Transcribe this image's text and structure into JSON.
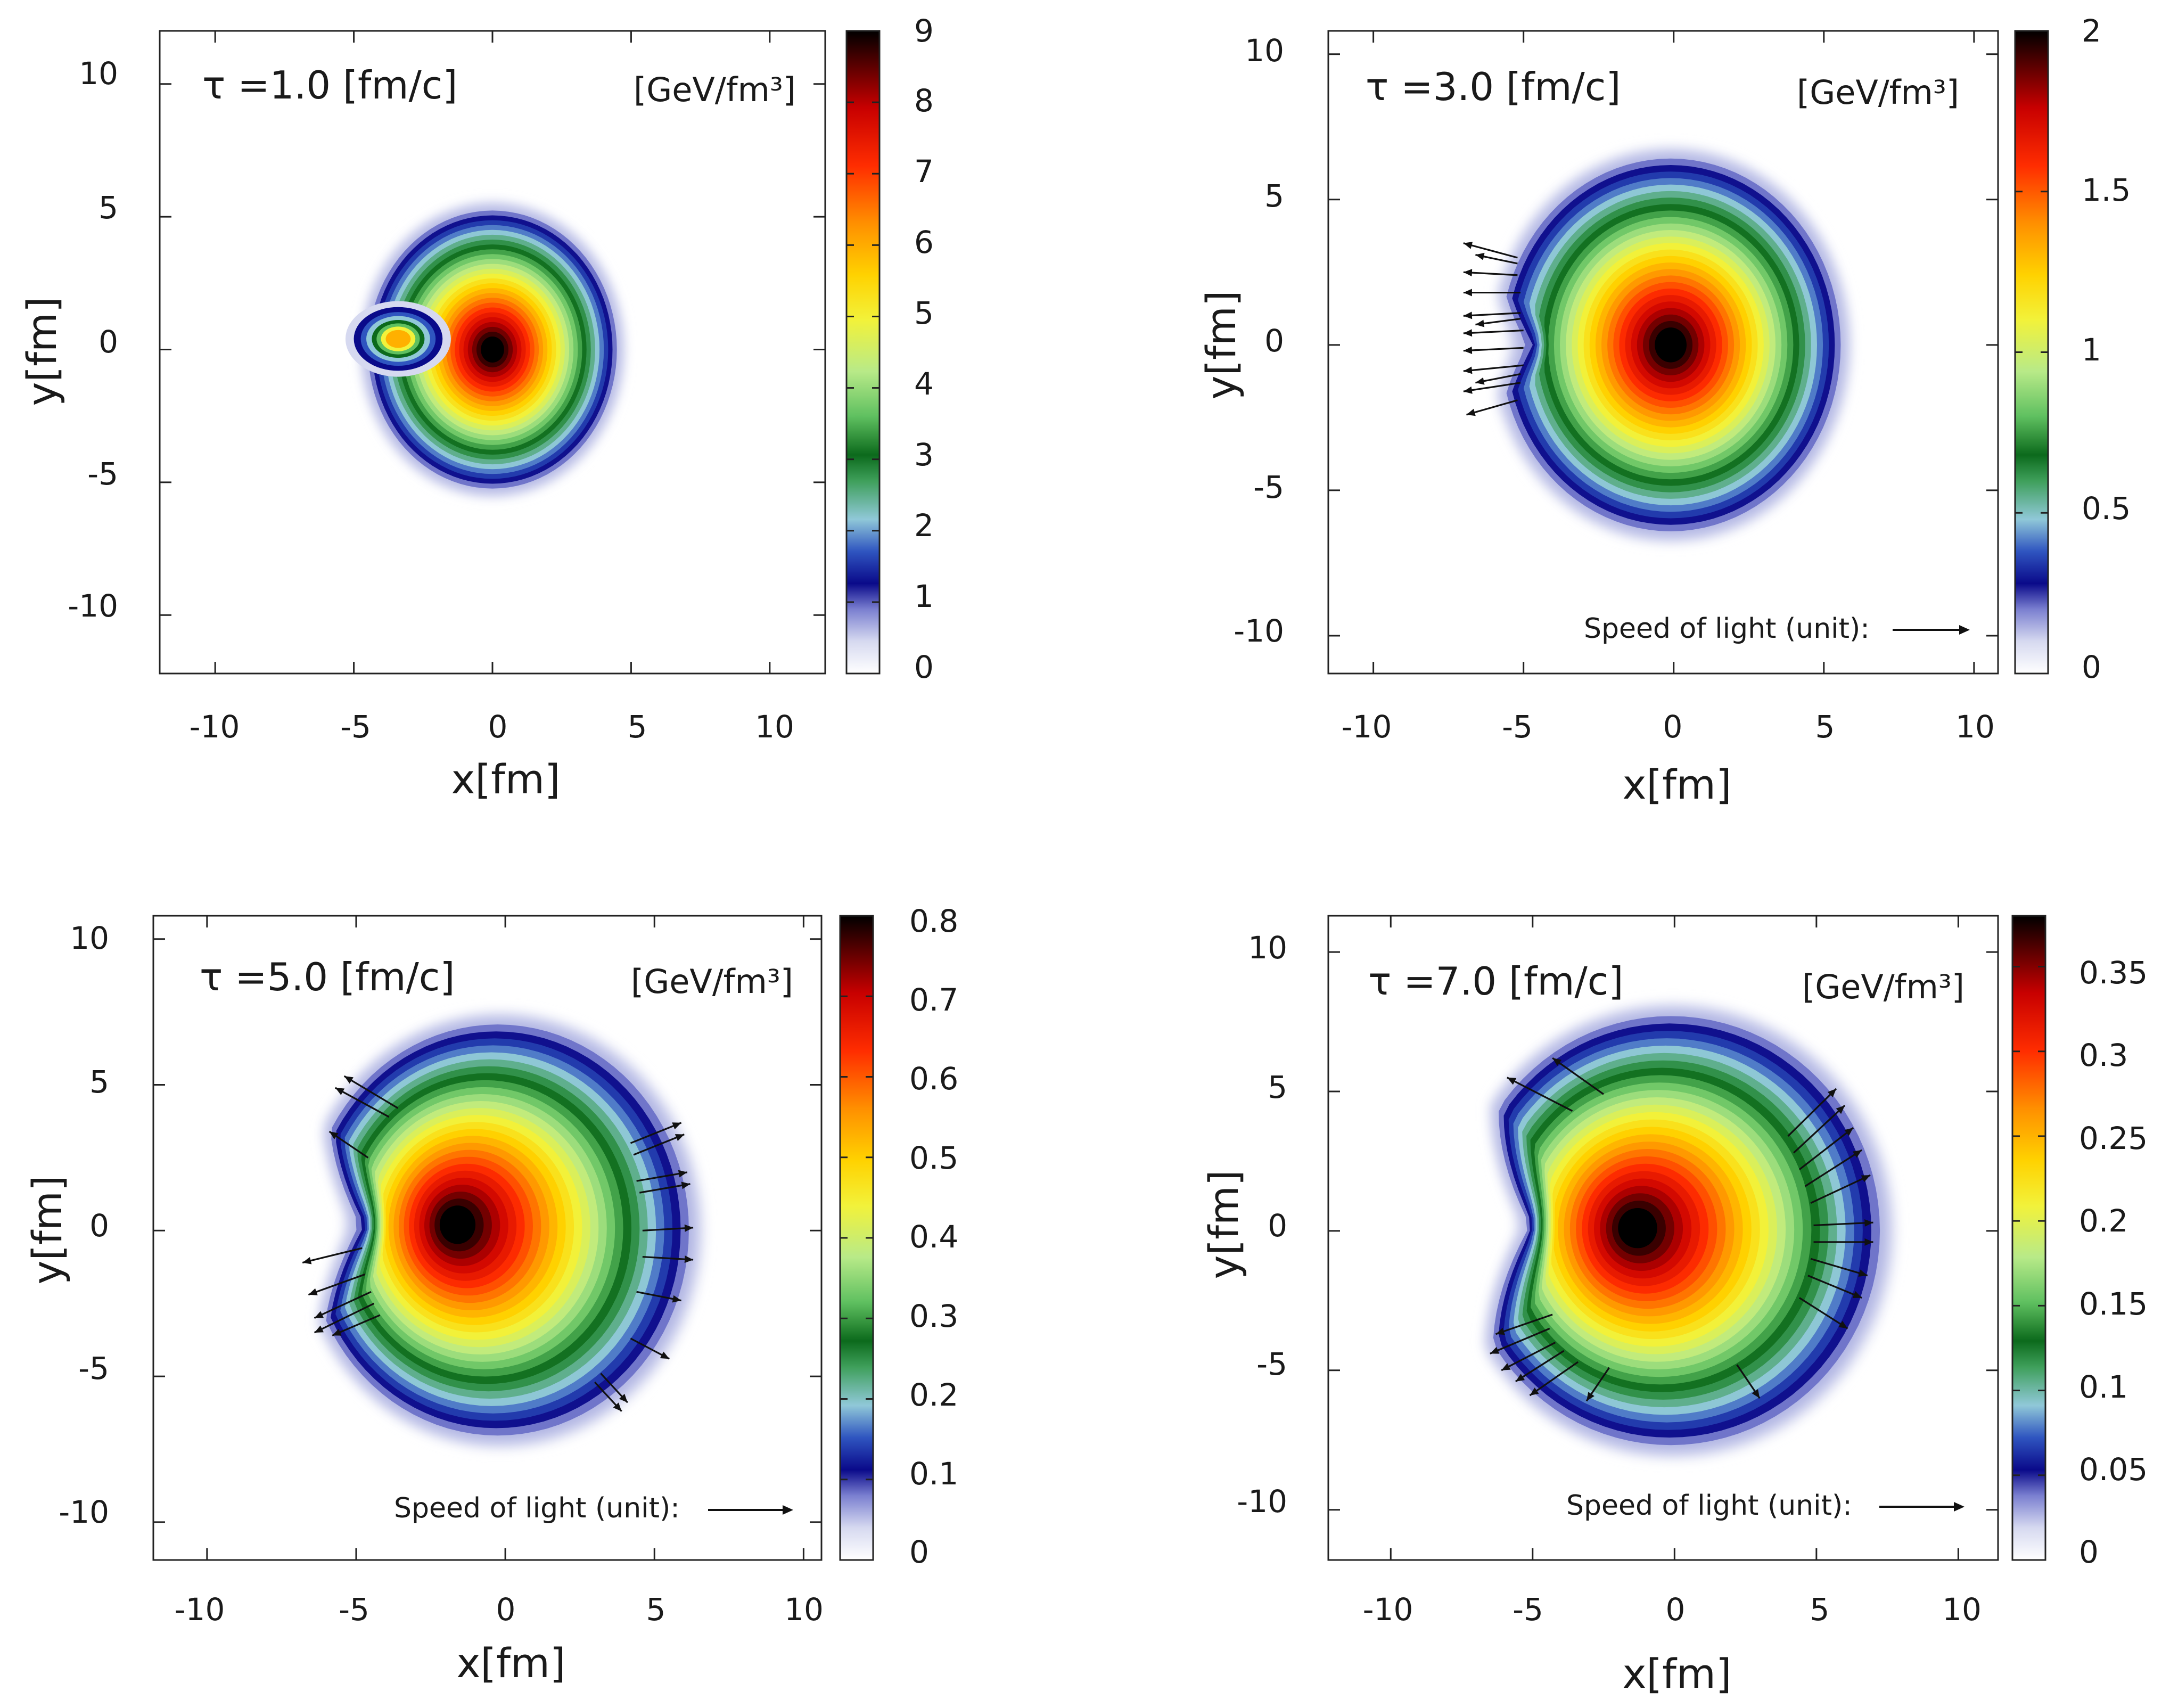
{
  "figure": {
    "description_free": true
  },
  "chart_data": [
    {
      "type": "heatmap",
      "title": "τ =1.0 [fm/c]",
      "colorbar_label": "[GeV/fm³]",
      "xlabel": "x[fm]",
      "ylabel": "y[fm]",
      "xlim": [
        -12,
        12
      ],
      "ylim": [
        -12.2,
        12
      ],
      "xticks": [
        -10,
        -5,
        0,
        5,
        10
      ],
      "yticks": [
        10,
        5,
        0,
        -5,
        -10
      ],
      "tick_labels_x": [
        "-10",
        "-5",
        "0",
        "5",
        "10"
      ],
      "tick_labels_y": [
        "10",
        "5",
        "0",
        "-5",
        "-10"
      ],
      "colorbar_range": [
        0,
        9
      ],
      "colorbar_ticks": [
        "0",
        "1",
        "2",
        "3",
        "4",
        "5",
        "6",
        "7",
        "8",
        "9"
      ],
      "peak_energy_density": 9,
      "peak_position": [
        0,
        0
      ],
      "secondary_hotspot": [
        -3.2,
        0.5
      ],
      "speed_of_light_label": "",
      "flow_arrows": []
    },
    {
      "type": "heatmap",
      "title": "τ =3.0 [fm/c]",
      "colorbar_label": "[GeV/fm³]",
      "xlabel": "x[fm]",
      "ylabel": "y[fm]",
      "xlim": [
        -11.5,
        10.8
      ],
      "ylim": [
        -11.3,
        10.8
      ],
      "xticks": [
        -10,
        -5,
        0,
        5,
        10
      ],
      "yticks": [
        10,
        5,
        0,
        -5,
        -10
      ],
      "tick_labels_x": [
        "-10",
        "-5",
        "0",
        "5",
        "10"
      ],
      "tick_labels_y": [
        "10",
        "5",
        "0",
        "-5",
        "-10"
      ],
      "colorbar_range": [
        0,
        2
      ],
      "colorbar_ticks": [
        "0",
        "0.5",
        "1",
        "1.5",
        "2"
      ],
      "peak_energy_density": 2,
      "peak_position": [
        0,
        0
      ],
      "speed_of_light_label": "Speed of light (unit):",
      "flow_arrows": [
        [
          -5.2,
          3.0,
          -7.0,
          3.5
        ],
        [
          -5.2,
          2.4,
          -7.0,
          2.5
        ],
        [
          -5.1,
          1.8,
          -7.0,
          1.8
        ],
        [
          -5.1,
          1.1,
          -7.0,
          1.0
        ],
        [
          -5.0,
          0.5,
          -7.0,
          0.4
        ],
        [
          -5.0,
          -0.1,
          -7.0,
          -0.2
        ],
        [
          -5.0,
          -0.7,
          -7.0,
          -0.9
        ],
        [
          -5.1,
          -1.3,
          -7.0,
          -1.6
        ],
        [
          -5.2,
          -1.9,
          -6.9,
          -2.4
        ],
        [
          -5.2,
          2.8,
          -6.6,
          3.1
        ],
        [
          -5.1,
          0.9,
          -6.6,
          0.7
        ],
        [
          -5.1,
          -1.0,
          -6.6,
          -1.3
        ]
      ]
    },
    {
      "type": "heatmap",
      "title": "τ =5.0 [fm/c]",
      "colorbar_label": "[GeV/fm³]",
      "xlabel": "x[fm]",
      "ylabel": "y[fm]",
      "xlim": [
        -11.8,
        10.6
      ],
      "ylim": [
        -11.3,
        10.8
      ],
      "xticks": [
        -10,
        -5,
        0,
        5,
        10
      ],
      "yticks": [
        10,
        5,
        0,
        -5,
        -10
      ],
      "tick_labels_x": [
        "-10",
        "-5",
        "0",
        "5",
        "10"
      ],
      "tick_labels_y": [
        "10",
        "5",
        "0",
        "-5",
        "-10"
      ],
      "colorbar_range": [
        0,
        0.8
      ],
      "colorbar_ticks": [
        "0",
        "0.1",
        "0.2",
        "0.3",
        "0.4",
        "0.5",
        "0.6",
        "0.7",
        "0.8"
      ],
      "peak_energy_density": 0.8,
      "peak_position": [
        -1.5,
        0.2
      ],
      "speed_of_light_label": "Speed of light (unit):",
      "flow_arrows": [
        [
          -3.6,
          4.2,
          -5.4,
          5.3
        ],
        [
          -3.9,
          3.9,
          -5.7,
          4.9
        ],
        [
          -4.6,
          2.5,
          -5.9,
          3.4
        ],
        [
          -4.8,
          -0.6,
          -6.8,
          -1.1
        ],
        [
          -4.7,
          -1.5,
          -6.6,
          -2.2
        ],
        [
          -4.5,
          -2.1,
          -6.4,
          -3.0
        ],
        [
          -4.4,
          -2.5,
          -6.4,
          -3.5
        ],
        [
          -4.2,
          -2.9,
          -5.8,
          -3.6
        ],
        [
          4.2,
          3.0,
          5.9,
          3.7
        ],
        [
          4.3,
          2.6,
          6.0,
          3.3
        ],
        [
          4.4,
          1.7,
          6.1,
          2.0
        ],
        [
          4.5,
          1.3,
          6.2,
          1.6
        ],
        [
          4.6,
          0.0,
          6.3,
          0.1
        ],
        [
          4.6,
          -0.9,
          6.3,
          -1.0
        ],
        [
          4.4,
          -2.1,
          5.9,
          -2.4
        ],
        [
          4.2,
          -3.7,
          5.5,
          -4.4
        ],
        [
          3.2,
          -4.9,
          4.1,
          -5.9
        ],
        [
          3.0,
          -5.2,
          3.9,
          -6.2
        ]
      ]
    },
    {
      "type": "heatmap",
      "title": "τ =7.0 [fm/c]",
      "colorbar_label": "[GeV/fm³]",
      "xlabel": "x[fm]",
      "ylabel": "y[fm]",
      "xlim": [
        -12.2,
        11.4
      ],
      "ylim": [
        -11.8,
        11.3
      ],
      "xticks": [
        -10,
        -5,
        0,
        5,
        10
      ],
      "yticks": [
        10,
        5,
        0,
        -5,
        -10
      ],
      "tick_labels_x": [
        "-10",
        "-5",
        "0",
        "5",
        "10"
      ],
      "tick_labels_y": [
        "10",
        "5",
        "0",
        "-5",
        "-10"
      ],
      "colorbar_range": [
        0,
        0.38
      ],
      "colorbar_ticks": [
        "0",
        "0.05",
        "0.1",
        "0.15",
        "0.2",
        "0.25",
        "0.3",
        "0.35"
      ],
      "peak_energy_density": 0.38,
      "peak_position": [
        -1.3,
        0.1
      ],
      "speed_of_light_label": "Speed of light (unit):",
      "flow_arrows": [
        [
          -2.5,
          4.9,
          -4.3,
          6.2
        ],
        [
          -3.6,
          4.3,
          -5.9,
          5.5
        ],
        [
          4.0,
          3.4,
          5.7,
          5.1
        ],
        [
          4.2,
          2.8,
          6.0,
          4.5
        ],
        [
          4.4,
          2.2,
          6.3,
          3.7
        ],
        [
          4.6,
          1.6,
          6.6,
          2.9
        ],
        [
          4.8,
          1.0,
          6.9,
          2.0
        ],
        [
          4.9,
          0.2,
          7.0,
          0.3
        ],
        [
          4.9,
          -0.4,
          7.0,
          -0.4
        ],
        [
          4.8,
          -1.0,
          6.8,
          -1.6
        ],
        [
          4.7,
          -1.6,
          6.6,
          -2.4
        ],
        [
          4.4,
          -2.4,
          6.1,
          -3.5
        ],
        [
          2.2,
          -4.8,
          3.0,
          -6.0
        ],
        [
          -2.3,
          -4.9,
          -3.1,
          -6.1
        ],
        [
          -4.3,
          -3.0,
          -6.3,
          -3.7
        ],
        [
          -4.4,
          -3.5,
          -6.5,
          -4.4
        ],
        [
          -4.2,
          -4.0,
          -6.1,
          -5.0
        ],
        [
          -3.9,
          -4.3,
          -5.6,
          -5.4
        ],
        [
          -3.4,
          -4.7,
          -5.1,
          -5.9
        ]
      ]
    }
  ]
}
